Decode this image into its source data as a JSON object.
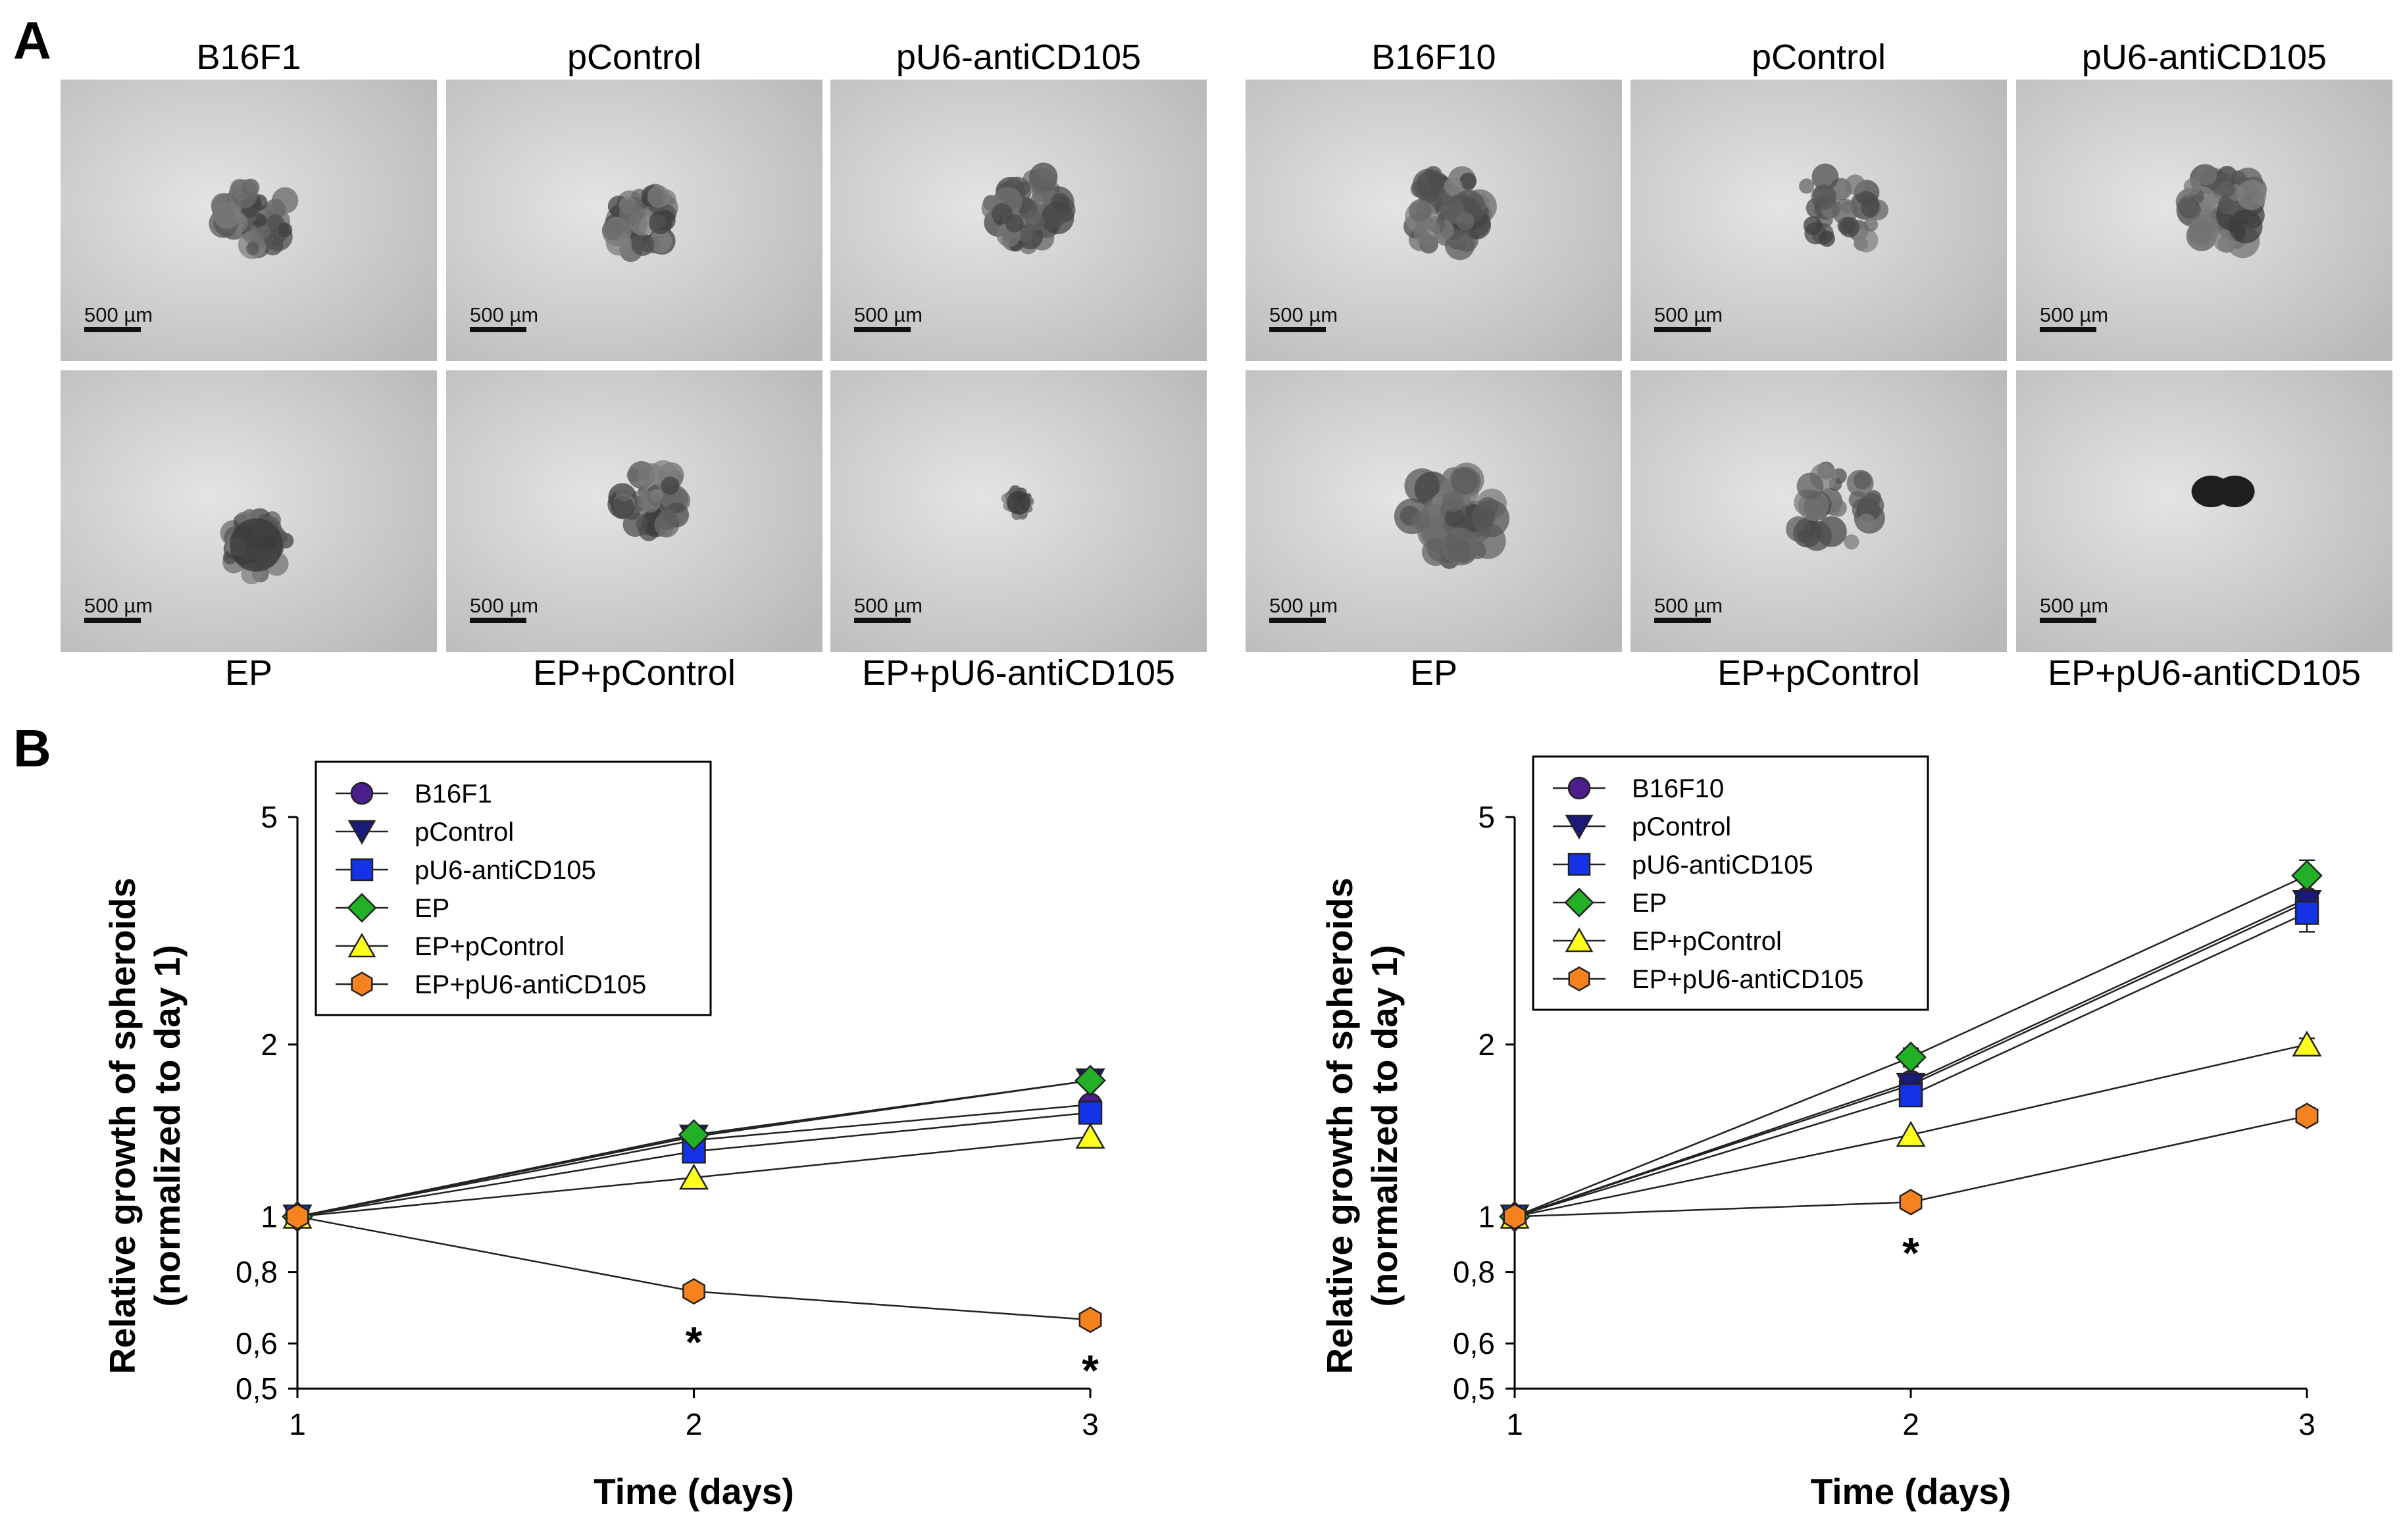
{
  "panels": {
    "a": "A",
    "b": "B"
  },
  "panel_a": {
    "groups": [
      {
        "top_labels": [
          "B16F1",
          "pControl",
          "pU6-antiCD105"
        ],
        "bottom_labels": [
          "EP",
          "EP+pControl",
          "EP+pU6-antiCD105"
        ],
        "scale_bars": [
          "500 µm",
          "500 µm",
          "500 µm",
          "500 µm",
          "500 µm",
          "500 µm"
        ]
      },
      {
        "top_labels": [
          "B16F10",
          "pControl",
          "pU6-antiCD105"
        ],
        "bottom_labels": [
          "EP",
          "EP+pControl",
          "EP+pU6-antiCD105"
        ],
        "scale_bars": [
          "500 µm",
          "500 µm",
          "500 µm",
          "500 µm",
          "500 µm",
          "500 µm"
        ]
      }
    ]
  },
  "chart_data": [
    {
      "type": "line",
      "xlabel": "Time (days)",
      "ylabel": [
        "Relative growth of spheroids",
        "(normalized to day 1)"
      ],
      "y_scale": "log",
      "ylim": [
        0.5,
        5
      ],
      "x": [
        1,
        2,
        3
      ],
      "x_ticks": [
        "1",
        "2",
        "3"
      ],
      "y_ticks": [
        {
          "value": 0.5,
          "label": "0,5"
        },
        {
          "value": 0.6,
          "label": "0,6"
        },
        {
          "value": 0.8,
          "label": "0,8"
        },
        {
          "value": 1,
          "label": "1"
        },
        {
          "value": 2,
          "label": "2"
        },
        {
          "value": 5,
          "label": "5"
        }
      ],
      "legend_position": "top-left",
      "series": [
        {
          "name": "B16F1",
          "values": [
            1,
            1.36,
            1.57
          ],
          "marker": "circle",
          "color": "#4B1E8C"
        },
        {
          "name": "pControl",
          "values": [
            1,
            1.38,
            1.73
          ],
          "marker": "triangle-down",
          "color": "#1A1A7A"
        },
        {
          "name": "pU6-antiCD105",
          "values": [
            1,
            1.3,
            1.52
          ],
          "marker": "square",
          "color": "#1432E6"
        },
        {
          "name": "EP",
          "values": [
            1,
            1.39,
            1.73
          ],
          "marker": "diamond",
          "color": "#22B026"
        },
        {
          "name": "EP+pControl",
          "values": [
            1,
            1.17,
            1.38
          ],
          "marker": "triangle-up",
          "color": "#FFFF1E"
        },
        {
          "name": "EP+pU6-antiCD105",
          "values": [
            1,
            0.74,
            0.66
          ],
          "marker": "hexagon",
          "color": "#F5821E"
        }
      ],
      "annotations": [
        {
          "x": 2,
          "text": "*"
        },
        {
          "x": 3,
          "text": "*"
        }
      ]
    },
    {
      "type": "line",
      "xlabel": "Time (days)",
      "ylabel": [
        "Relative growth of spheroids",
        "(normalized to day 1)"
      ],
      "y_scale": "log",
      "ylim": [
        0.5,
        5
      ],
      "x": [
        1,
        2,
        3
      ],
      "x_ticks": [
        "1",
        "2",
        "3"
      ],
      "y_ticks": [
        {
          "value": 0.5,
          "label": "0,5"
        },
        {
          "value": 0.6,
          "label": "0,6"
        },
        {
          "value": 0.8,
          "label": "0,8"
        },
        {
          "value": 1,
          "label": "1"
        },
        {
          "value": 2,
          "label": "2"
        },
        {
          "value": 5,
          "label": "5"
        }
      ],
      "legend_position": "top-left",
      "series": [
        {
          "name": "B16F10",
          "values": [
            1,
            1.72,
            3.6
          ],
          "marker": "circle",
          "color": "#4B1E8C",
          "error": [
            0,
            0.06,
            0
          ]
        },
        {
          "name": "pControl",
          "values": [
            1,
            1.7,
            3.55
          ],
          "marker": "triangle-down",
          "color": "#1A1A7A",
          "error": [
            0,
            0,
            0
          ]
        },
        {
          "name": "pU6-antiCD105",
          "values": [
            1,
            1.63,
            3.4
          ],
          "marker": "square",
          "color": "#1432E6",
          "error": [
            0,
            0,
            0.25
          ]
        },
        {
          "name": "EP",
          "values": [
            1,
            1.9,
            3.95
          ],
          "marker": "diamond",
          "color": "#22B026",
          "error": [
            0,
            0.07,
            0.25
          ]
        },
        {
          "name": "EP+pControl",
          "values": [
            1,
            1.39,
            2.0
          ],
          "marker": "triangle-up",
          "color": "#FFFF1E",
          "error": [
            0,
            0,
            0.05
          ]
        },
        {
          "name": "EP+pU6-antiCD105",
          "values": [
            1,
            1.06,
            1.5
          ],
          "marker": "hexagon",
          "color": "#F5821E",
          "error": [
            0,
            0,
            0
          ]
        }
      ],
      "annotations": [
        {
          "x": 2,
          "text": "*"
        }
      ]
    }
  ]
}
